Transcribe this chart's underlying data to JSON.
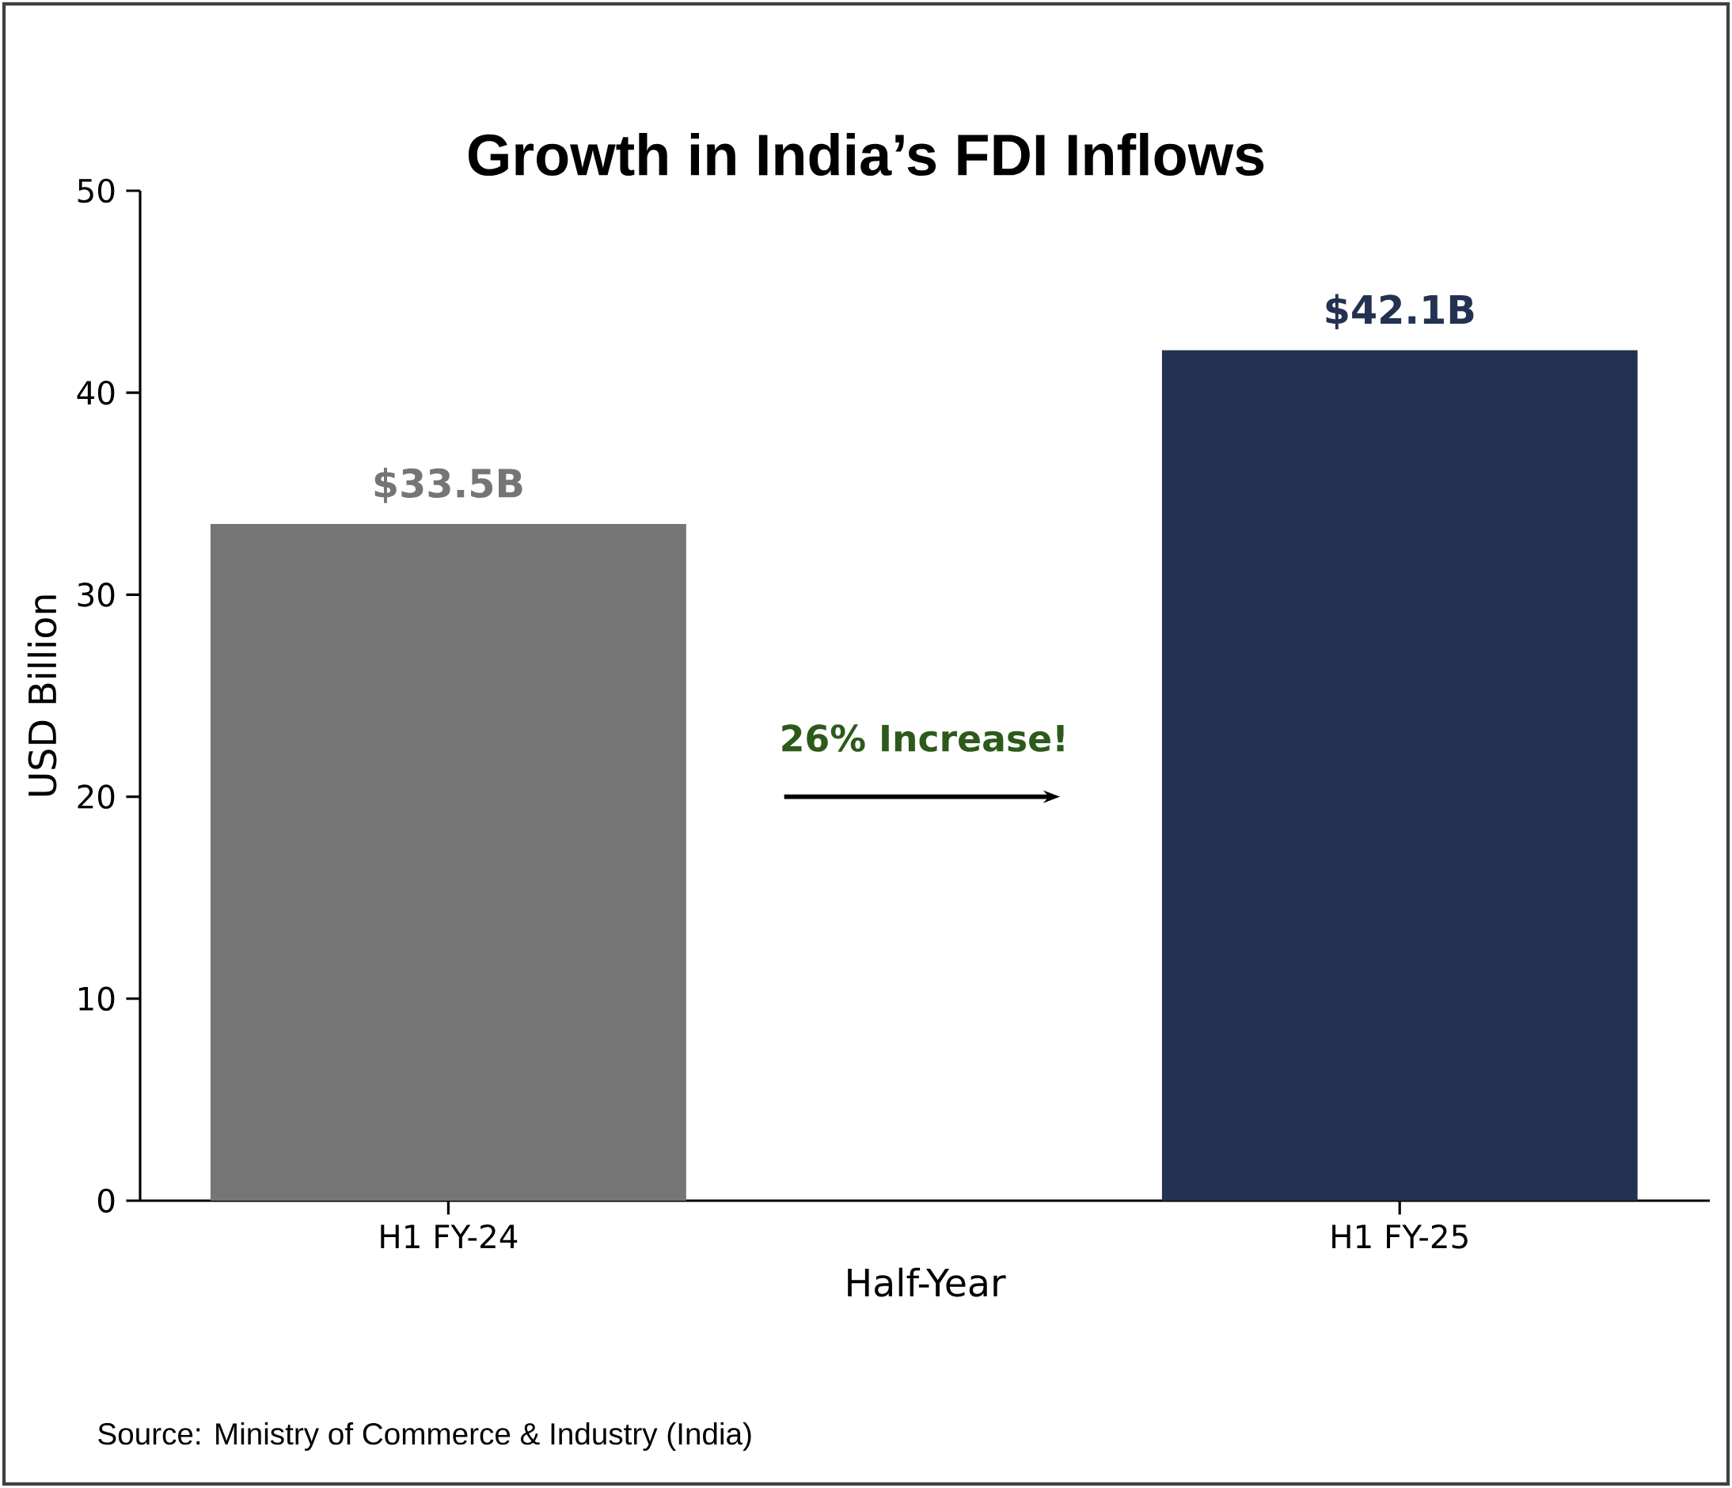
{
  "chart_data": {
    "type": "bar",
    "title": "Growth in India’s FDI Inflows",
    "xlabel": "Half-Year",
    "ylabel": "USD Billion",
    "categories": [
      "H1 FY-24",
      "H1 FY-25"
    ],
    "values": [
      33.5,
      42.1
    ],
    "colors": [
      "#757575",
      "#233250"
    ],
    "value_labels": [
      "$33.5B",
      "$42.1B"
    ],
    "ylim": [
      0,
      50
    ],
    "yticks": [
      0,
      10,
      20,
      30,
      40,
      50
    ],
    "grid": false,
    "annotations": [
      "26% Increase!",
      "Source: Ministry of Commerce & Industry (India)"
    ]
  }
}
